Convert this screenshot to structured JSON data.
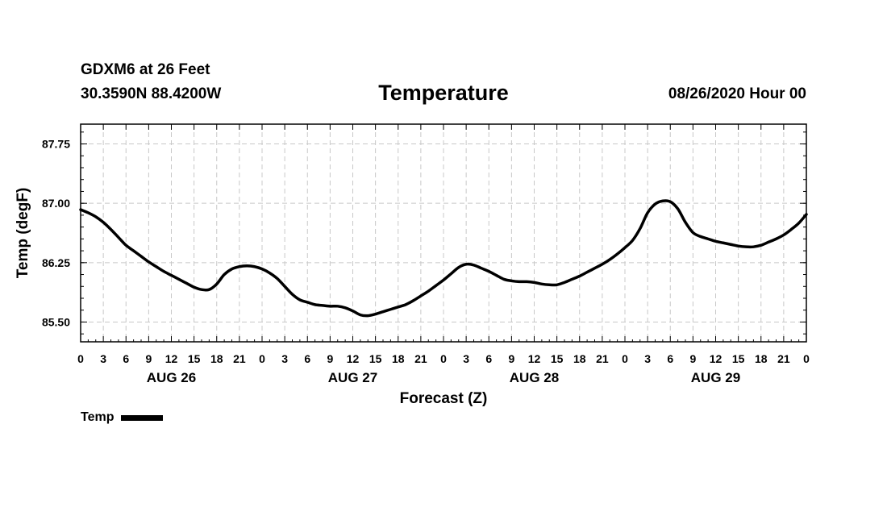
{
  "header": {
    "station": "GDXM6 at 26 Feet",
    "coords": "30.3590N 88.4200W",
    "title": "Temperature",
    "datetime": "08/26/2020 Hour 00"
  },
  "legend": {
    "label": "Temp"
  },
  "chart_data": {
    "type": "line",
    "title": "Temperature",
    "xlabel": "Forecast (Z)",
    "ylabel": "Temp (degF)",
    "xlim": [
      0,
      96
    ],
    "ylim": [
      85.25,
      88.0
    ],
    "yticks": [
      85.5,
      86.25,
      87.0,
      87.75
    ],
    "ytick_labels": [
      "85.50",
      "86.25",
      "87.00",
      "87.75"
    ],
    "xticks": [
      0,
      3,
      6,
      9,
      12,
      15,
      18,
      21,
      24,
      27,
      30,
      33,
      36,
      39,
      42,
      45,
      48,
      51,
      54,
      57,
      60,
      63,
      66,
      69,
      72,
      75,
      78,
      81,
      84,
      87,
      90,
      93,
      96
    ],
    "xtick_labels": [
      "0",
      "3",
      "6",
      "9",
      "12",
      "15",
      "18",
      "21",
      "0",
      "3",
      "6",
      "9",
      "12",
      "15",
      "18",
      "21",
      "0",
      "3",
      "6",
      "9",
      "12",
      "15",
      "18",
      "21",
      "0",
      "3",
      "6",
      "9",
      "12",
      "15",
      "18",
      "21",
      "0"
    ],
    "day_labels": [
      {
        "label": "AUG 26",
        "x": 12
      },
      {
        "label": "AUG 27",
        "x": 36
      },
      {
        "label": "AUG 28",
        "x": 60
      },
      {
        "label": "AUG 29",
        "x": 84
      }
    ],
    "grid": true,
    "legend_position": "bottom-left",
    "series": [
      {
        "name": "Temp",
        "x": [
          0,
          1,
          2,
          3,
          4,
          5,
          6,
          7,
          8,
          9,
          10,
          11,
          12,
          13,
          14,
          15,
          16,
          17,
          18,
          19,
          20,
          21,
          22,
          23,
          24,
          25,
          26,
          27,
          28,
          29,
          30,
          31,
          32,
          33,
          34,
          35,
          36,
          37,
          38,
          39,
          40,
          41,
          42,
          43,
          44,
          45,
          46,
          47,
          48,
          49,
          50,
          51,
          52,
          53,
          54,
          55,
          56,
          57,
          58,
          59,
          60,
          61,
          62,
          63,
          64,
          65,
          66,
          67,
          68,
          69,
          70,
          71,
          72,
          73,
          74,
          75,
          76,
          77,
          78,
          79,
          80,
          81,
          82,
          83,
          84,
          85,
          86,
          87,
          88,
          89,
          90,
          91,
          92,
          93,
          94,
          95,
          96
        ],
        "y": [
          86.92,
          86.88,
          86.83,
          86.76,
          86.67,
          86.57,
          86.47,
          86.4,
          86.33,
          86.26,
          86.2,
          86.14,
          86.09,
          86.04,
          85.99,
          85.94,
          85.91,
          85.91,
          85.98,
          86.1,
          86.17,
          86.2,
          86.21,
          86.2,
          86.17,
          86.12,
          86.05,
          85.95,
          85.85,
          85.78,
          85.75,
          85.72,
          85.71,
          85.7,
          85.7,
          85.68,
          85.64,
          85.59,
          85.58,
          85.6,
          85.63,
          85.66,
          85.69,
          85.72,
          85.77,
          85.83,
          85.89,
          85.96,
          86.03,
          86.11,
          86.19,
          86.23,
          86.22,
          86.18,
          86.14,
          86.09,
          86.04,
          86.02,
          86.01,
          86.01,
          86.0,
          85.98,
          85.97,
          85.97,
          86.0,
          86.04,
          86.08,
          86.13,
          86.18,
          86.23,
          86.29,
          86.36,
          86.44,
          86.53,
          86.68,
          86.88,
          86.99,
          87.03,
          87.02,
          86.93,
          86.76,
          86.63,
          86.58,
          86.55,
          86.52,
          86.5,
          86.48,
          86.46,
          86.45,
          86.45,
          86.47,
          86.51,
          86.55,
          86.6,
          86.67,
          86.75,
          86.86
        ]
      }
    ]
  }
}
